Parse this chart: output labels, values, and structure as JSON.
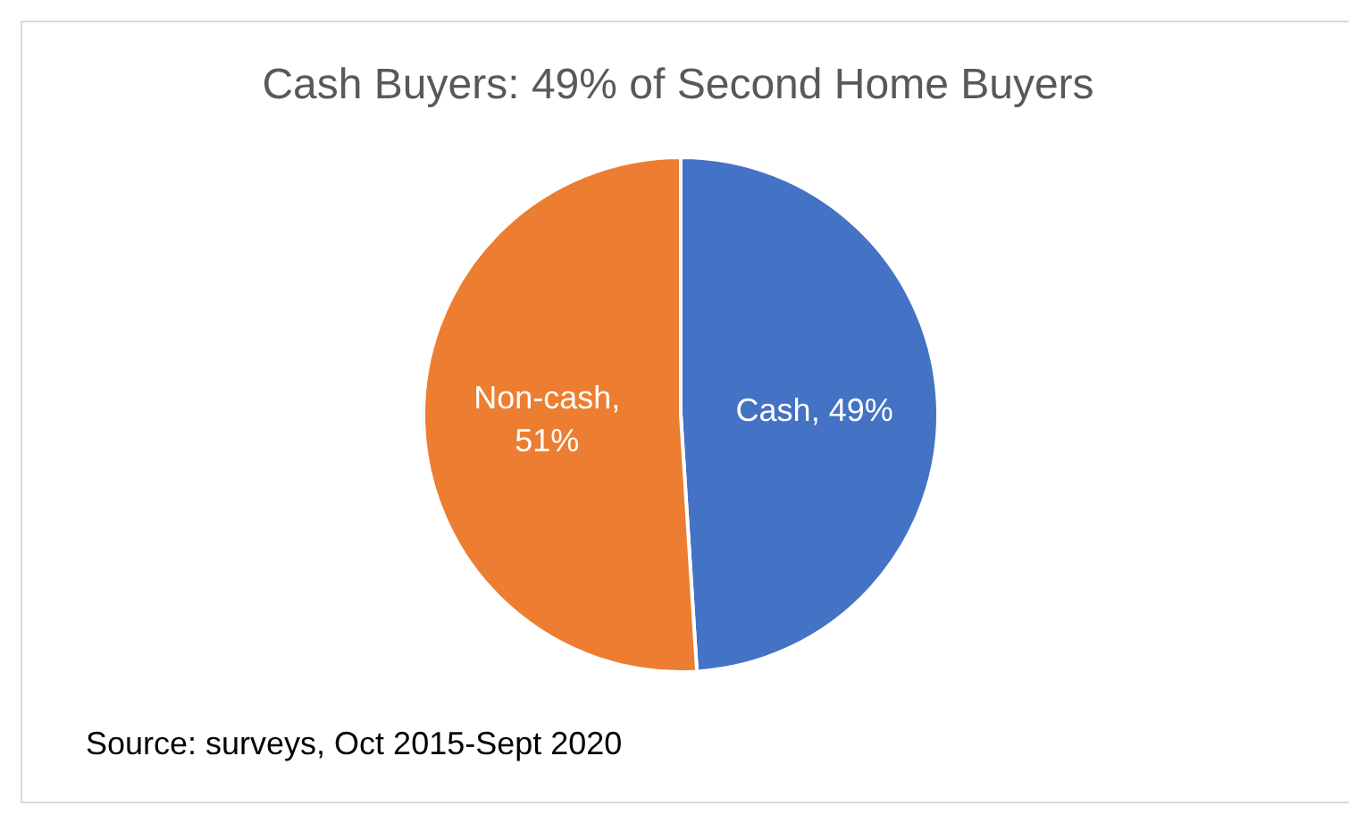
{
  "chart_data": {
    "type": "pie",
    "title": "Cash Buyers: 49% of Second Home Buyers",
    "categories": [
      "Cash",
      "Non-cash"
    ],
    "values": [
      49,
      51
    ],
    "colors": [
      "#4472c4",
      "#ed7d31"
    ],
    "value_labels": [
      ", 49%",
      ", 51%"
    ],
    "annotations": [
      "Source: surveys, Oct 2015-Sept 2020"
    ]
  }
}
